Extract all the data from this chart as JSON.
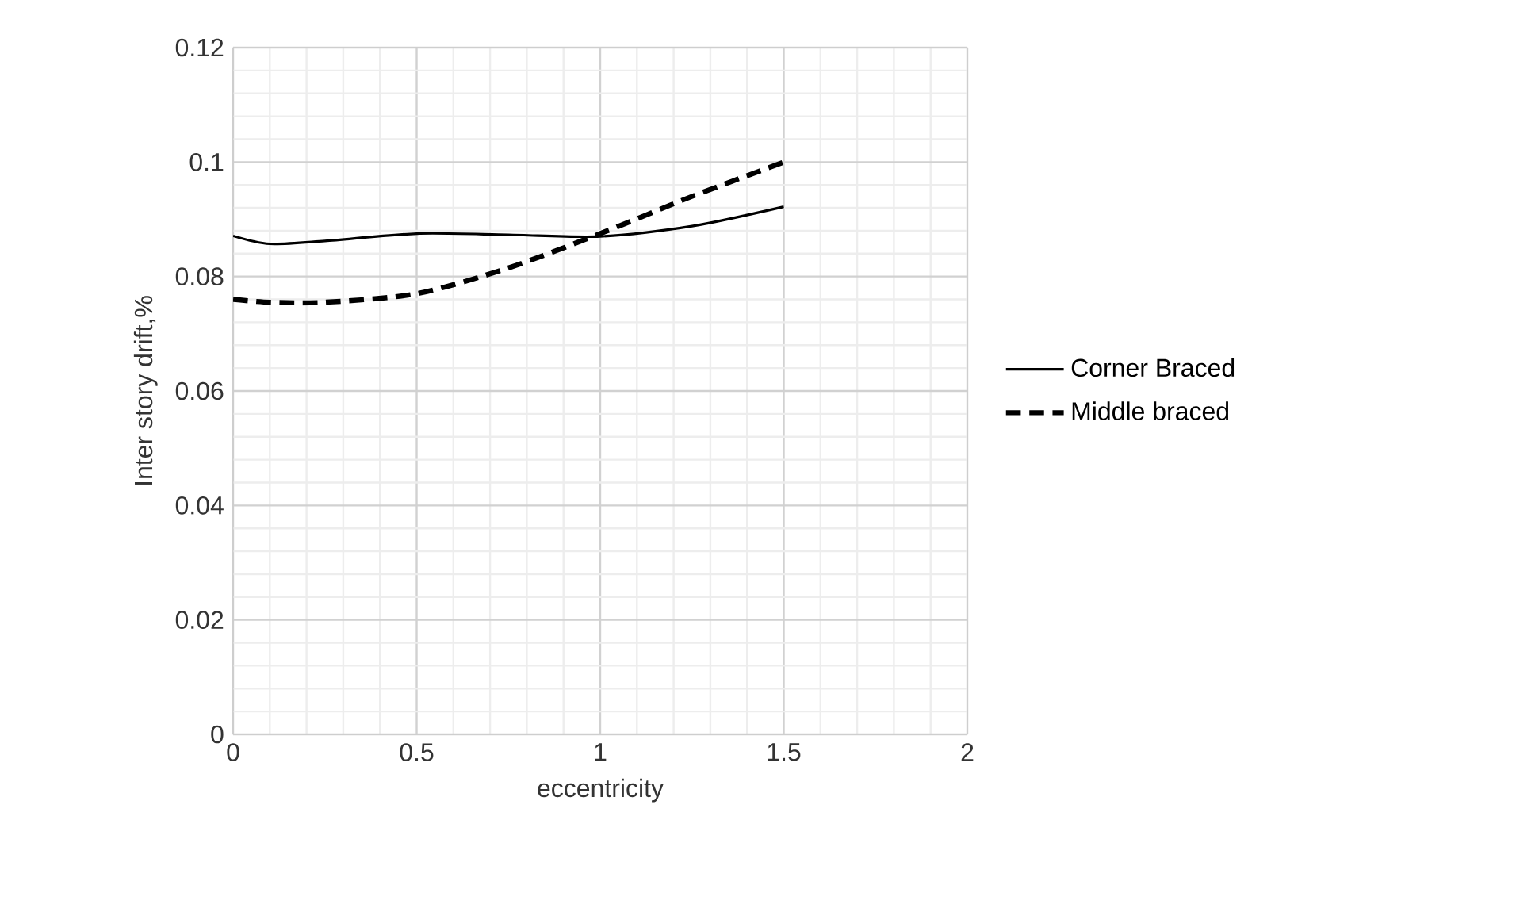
{
  "chart_data": {
    "type": "line",
    "xlabel": "eccentricity",
    "ylabel": "Inter story drift,%",
    "x": [
      0,
      0.1,
      0.25,
      0.5,
      0.75,
      1,
      1.25,
      1.5
    ],
    "series": [
      {
        "name": "Corner Braced",
        "color": "#000000",
        "line_style": "solid",
        "values": [
          0.0871,
          0.0857,
          0.0862,
          0.0875,
          0.0873,
          0.087,
          0.0888,
          0.0922
        ]
      },
      {
        "name": "Middle braced",
        "color": "#000000",
        "line_style": "dashed",
        "values": [
          0.076,
          0.0755,
          0.0755,
          0.077,
          0.0815,
          0.0875,
          0.094,
          0.1
        ]
      }
    ],
    "xlim": [
      0,
      2
    ],
    "ylim": [
      0,
      0.12
    ],
    "xticks": [
      0,
      {
        "value": 0.1,
        "label": null
      },
      {
        "value": 0.2,
        "label": null
      },
      {
        "value": 0.3,
        "label": null
      },
      {
        "value": 0.4,
        "label": null
      },
      0.5,
      {
        "value": 0.6,
        "label": null
      },
      {
        "value": 0.7,
        "label": null
      },
      {
        "value": 0.8,
        "label": null
      },
      {
        "value": 0.9,
        "label": null
      },
      1,
      {
        "value": 1.1,
        "label": null
      },
      {
        "value": 1.2,
        "label": null
      },
      {
        "value": 1.3,
        "label": null
      },
      {
        "value": 1.4,
        "label": null
      },
      1.5,
      {
        "value": 1.6,
        "label": null
      },
      {
        "value": 1.7,
        "label": null
      },
      {
        "value": 1.8,
        "label": null
      },
      {
        "value": 1.9,
        "label": null
      },
      2
    ],
    "yticks": [
      0,
      {
        "value": 0.004,
        "label": null
      },
      {
        "value": 0.008,
        "label": null
      },
      {
        "value": 0.012,
        "label": null
      },
      {
        "value": 0.016,
        "label": null
      },
      0.02,
      {
        "value": 0.024,
        "label": null
      },
      {
        "value": 0.028,
        "label": null
      },
      {
        "value": 0.032,
        "label": null
      },
      {
        "value": 0.036,
        "label": null
      },
      0.04,
      {
        "value": 0.044,
        "label": null
      },
      {
        "value": 0.048,
        "label": null
      },
      {
        "value": 0.052,
        "label": null
      },
      {
        "value": 0.056,
        "label": null
      },
      0.06,
      {
        "value": 0.064,
        "label": null
      },
      {
        "value": 0.068,
        "label": null
      },
      {
        "value": 0.072,
        "label": null
      },
      {
        "value": 0.076,
        "label": null
      },
      0.08,
      {
        "value": 0.084,
        "label": null
      },
      {
        "value": 0.088,
        "label": null
      },
      {
        "value": 0.092,
        "label": null
      },
      {
        "value": 0.096,
        "label": null
      },
      0.1,
      {
        "value": 0.104,
        "label": null
      },
      {
        "value": 0.108,
        "label": null
      },
      {
        "value": 0.112,
        "label": null
      },
      {
        "value": 0.116,
        "label": null
      },
      0.12
    ],
    "grid": true,
    "legend": "right",
    "marker": "none"
  }
}
